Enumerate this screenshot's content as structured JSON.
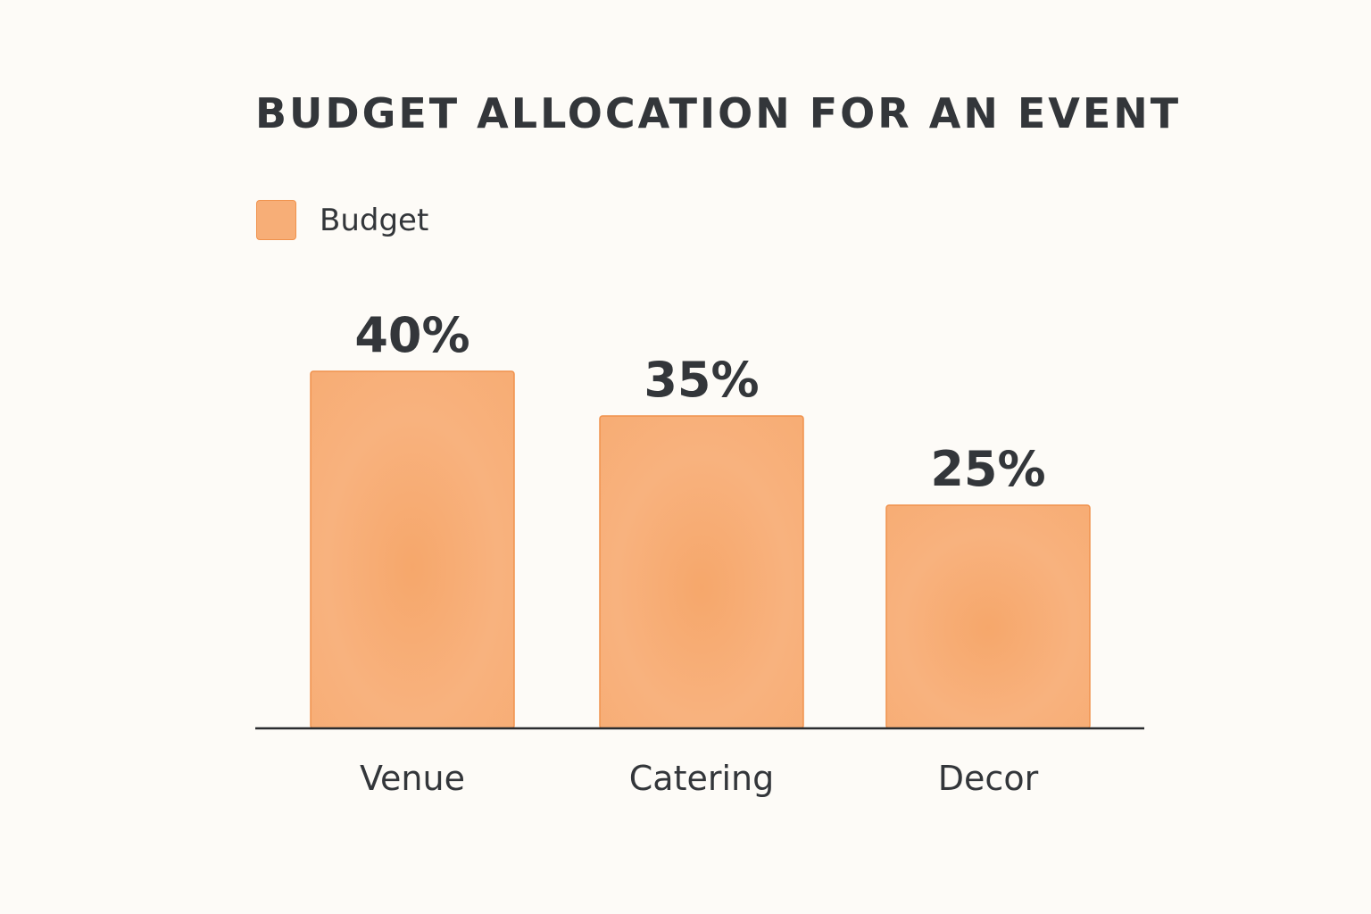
{
  "chart_data": {
    "type": "bar",
    "title": "BUDGET ALLOCATION FOR AN EVENT",
    "categories": [
      "Venue",
      "Catering",
      "Decor"
    ],
    "series": [
      {
        "name": "Budget",
        "values": [
          40,
          35,
          25
        ]
      }
    ],
    "data_labels": [
      "40%",
      "35%",
      "25%"
    ],
    "ylim": [
      0,
      60
    ],
    "grid": false,
    "legend": "top-left",
    "colors": {
      "bar_fill": "#f7ae77",
      "bar_edge": "#f0924d",
      "axis": "#2a2c2f",
      "text": "#33363a"
    }
  }
}
